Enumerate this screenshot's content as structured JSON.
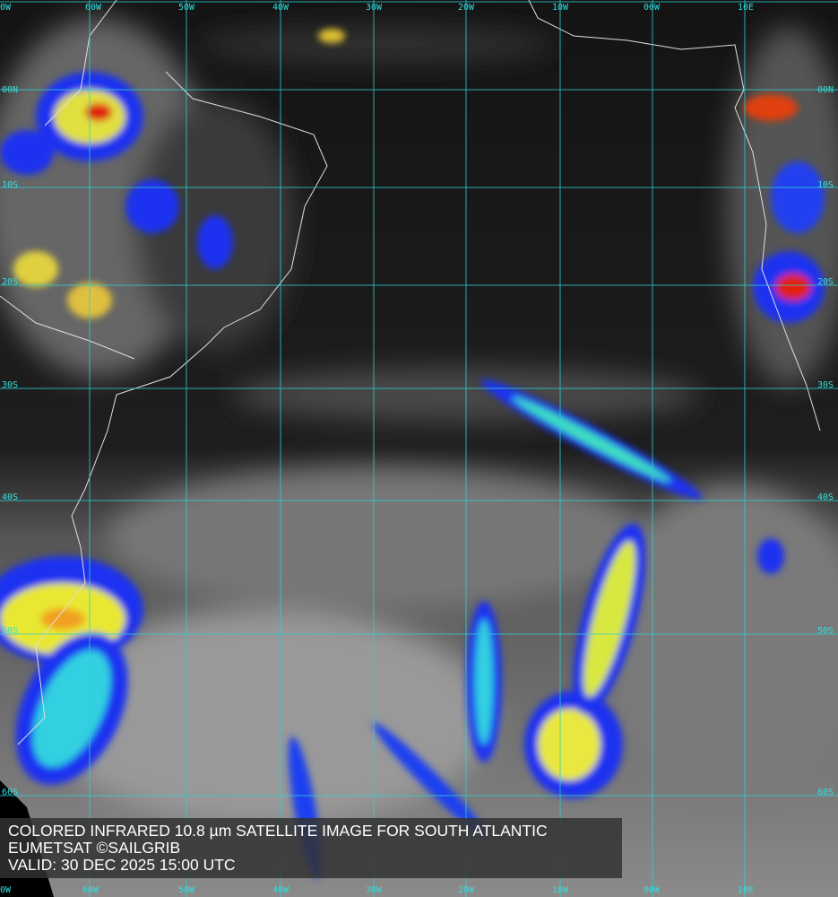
{
  "caption": {
    "line1": "COLORED INFRARED 10.8 µm SATELLITE IMAGE FOR SOUTH ATLANTIC",
    "line2": "EUMETSAT ©SAILGRIB",
    "line3": "VALID:  30 DEC 2025 15:00 UTC"
  },
  "longitude_labels": [
    "60W",
    "50W",
    "40W",
    "30W",
    "20W",
    "10W",
    "00W",
    "10E"
  ],
  "edge_longitude_label": "0W",
  "latitude_labels": [
    "00N",
    "10S",
    "20S",
    "30S",
    "40S",
    "50S",
    "60S"
  ],
  "colors": {
    "grid": "#2fd0d0",
    "coast": "#e0e0e0",
    "cold_red": "#e02010",
    "yellow": "#f0f020",
    "cyan": "#20e0e0",
    "blue": "#1020f0"
  }
}
